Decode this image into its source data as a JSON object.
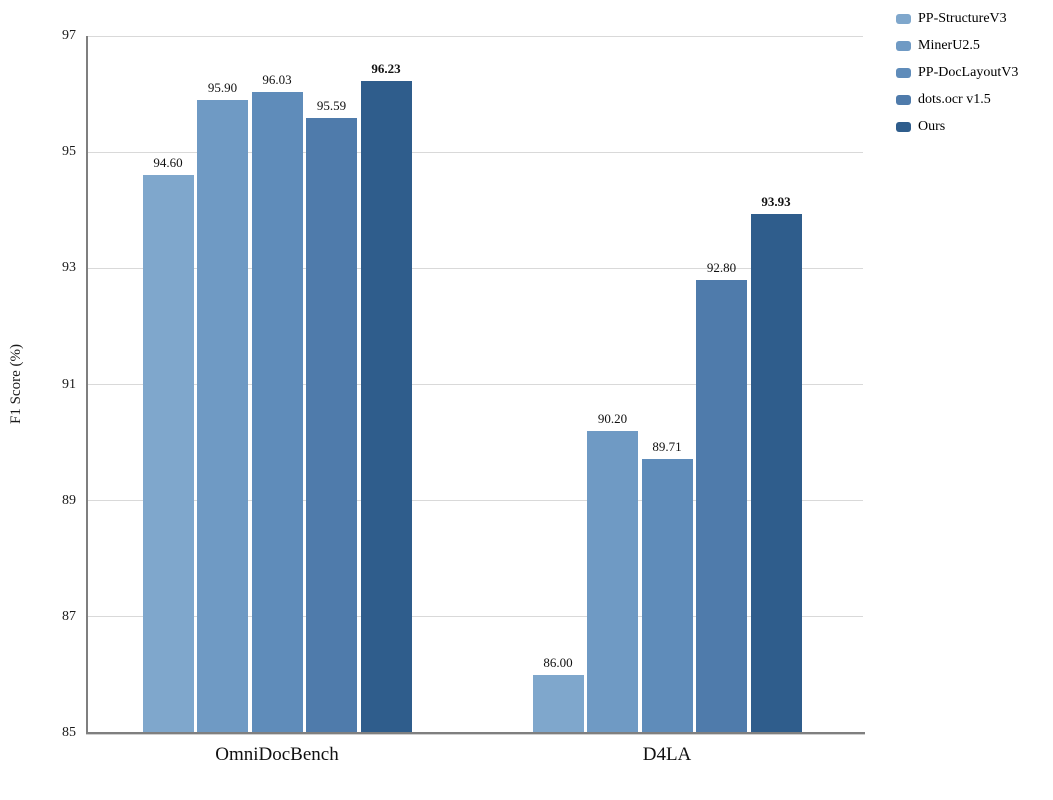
{
  "chart_data": {
    "type": "bar",
    "title": "",
    "xlabel": "",
    "ylabel": "F1 Score (%)",
    "categories": [
      "OmniDocBench",
      "D4LA"
    ],
    "series": [
      {
        "name": "PP-StructureV3",
        "color": "#7fa7cc",
        "values": [
          94.6,
          86.0
        ],
        "bold_labels": false
      },
      {
        "name": "MinerU2.5",
        "color": "#6f9ac4",
        "values": [
          95.9,
          90.2
        ],
        "bold_labels": false
      },
      {
        "name": "PP-DocLayoutV3",
        "color": "#5f8cba",
        "values": [
          96.03,
          89.71
        ],
        "bold_labels": false
      },
      {
        "name": "dots.ocr v1.5",
        "color": "#4f7bab",
        "values": [
          95.59,
          92.8
        ],
        "bold_labels": false
      },
      {
        "name": "Ours",
        "color": "#2f5d8c",
        "values": [
          96.23,
          93.93
        ],
        "bold_labels": true
      }
    ],
    "ylim": [
      85,
      97
    ],
    "ytick_step": 2,
    "yticks": [
      "85",
      "87",
      "89",
      "91",
      "93",
      "95",
      "97"
    ],
    "grid": "horizontal-only",
    "gridline_color": "#d9d9d9",
    "axis_line_color": "#7f7f7f",
    "legend_position": "top-right-outside",
    "value_labels_shown": true,
    "value_label_decimals": 2
  }
}
